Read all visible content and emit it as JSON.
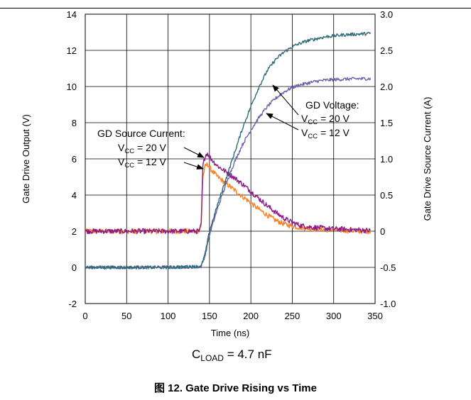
{
  "caption": {
    "label": "图 12. Gate Drive Rising vs Time"
  },
  "load": {
    "main": "C",
    "sub": "LOAD",
    "rest": " = 4.7 nF"
  },
  "annotations": {
    "voltage_title": "GD Voltage:",
    "current_title": "GD Source Current:",
    "v_main": "V",
    "v_sub": "CC",
    "v20": " = 20 V",
    "v12": " = 12 V"
  },
  "chart_data": {
    "type": "line",
    "xlabel": "Time (ns)",
    "ylabel": "Gate Drive Output (V)",
    "y2label": "Gate Drive Source Current (A)",
    "xlim": [
      0,
      350
    ],
    "ylim": [
      -2,
      14
    ],
    "y2lim": [
      -1.0,
      3.0
    ],
    "grid": true,
    "x_ticks": [
      "0",
      "50",
      "100",
      "150",
      "200",
      "250",
      "300",
      "350"
    ],
    "y_ticks": [
      "-2",
      "0",
      "2",
      "4",
      "6",
      "8",
      "10",
      "12",
      "14"
    ],
    "y2_ticks": [
      "-1.0",
      "-0.5",
      "0",
      "0.5",
      "1.0",
      "1.5",
      "2.0",
      "2.5",
      "3.0"
    ],
    "colors": {
      "voltage_vcc20": "#2f6b78",
      "voltage_vcc12": "#6a63a8",
      "current_vcc20": "#8a1b8a",
      "current_vcc12": "#ff7f1f"
    },
    "series": [
      {
        "axis": "left",
        "color_key": "voltage_vcc20",
        "x": [
          0,
          100,
          140,
          145,
          150,
          160,
          170,
          180,
          190,
          200,
          210,
          220,
          230,
          240,
          250,
          260,
          270,
          280,
          290,
          300,
          310,
          320,
          330,
          340,
          345
        ],
        "y": [
          0,
          0,
          0.05,
          0.8,
          2.0,
          3.5,
          4.9,
          6.3,
          7.7,
          8.9,
          10.0,
          10.9,
          11.5,
          11.9,
          12.2,
          12.4,
          12.55,
          12.65,
          12.75,
          12.8,
          12.85,
          12.88,
          12.9,
          12.92,
          12.95
        ]
      },
      {
        "axis": "left",
        "color_key": "voltage_vcc12",
        "x": [
          0,
          100,
          140,
          145,
          150,
          160,
          170,
          180,
          190,
          200,
          210,
          220,
          230,
          240,
          250,
          260,
          270,
          280,
          290,
          300,
          310,
          320,
          330,
          340,
          345
        ],
        "y": [
          0,
          0,
          0.05,
          0.7,
          1.8,
          3.3,
          4.6,
          5.8,
          6.8,
          7.6,
          8.3,
          8.9,
          9.35,
          9.7,
          9.95,
          10.1,
          10.2,
          10.3,
          10.35,
          10.38,
          10.4,
          10.42,
          10.43,
          10.43,
          10.44
        ]
      },
      {
        "axis": "right",
        "color_key": "current_vcc20",
        "x": [
          0,
          100,
          138,
          140,
          142,
          145,
          148,
          150,
          155,
          160,
          170,
          180,
          190,
          200,
          210,
          220,
          230,
          240,
          250,
          260,
          270,
          280,
          290,
          300,
          310,
          320,
          330,
          340,
          345
        ],
        "y": [
          0,
          0,
          0,
          0.1,
          0.9,
          1.05,
          1.08,
          1.03,
          0.96,
          0.9,
          0.82,
          0.74,
          0.65,
          0.55,
          0.45,
          0.35,
          0.26,
          0.18,
          0.12,
          0.08,
          0.06,
          0.05,
          0.04,
          0.03,
          0.03,
          0.02,
          0.02,
          0.01,
          0.01
        ]
      },
      {
        "axis": "right",
        "color_key": "current_vcc12",
        "x": [
          0,
          100,
          138,
          140,
          142,
          145,
          148,
          150,
          155,
          160,
          170,
          180,
          190,
          200,
          210,
          220,
          230,
          240,
          250,
          260,
          270,
          280,
          290,
          300,
          310,
          320,
          330,
          340,
          345
        ],
        "y": [
          0,
          0,
          0,
          0.08,
          0.75,
          0.9,
          0.93,
          0.88,
          0.81,
          0.75,
          0.66,
          0.57,
          0.48,
          0.39,
          0.3,
          0.22,
          0.15,
          0.1,
          0.07,
          0.05,
          0.04,
          0.03,
          0.02,
          0.02,
          0.01,
          0.01,
          0.0,
          0.0,
          0.0
        ]
      }
    ]
  }
}
